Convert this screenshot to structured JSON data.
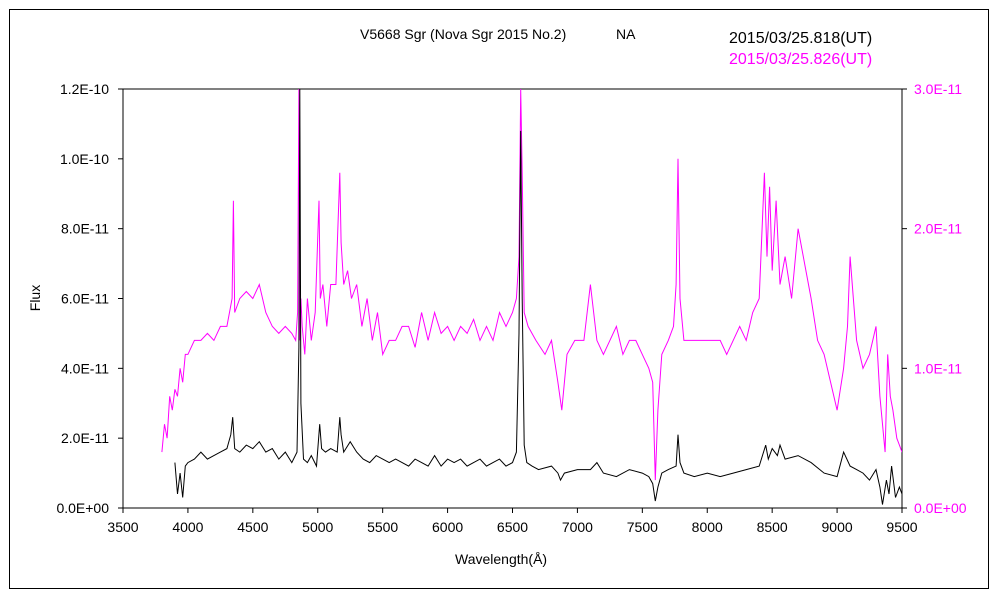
{
  "chart_data": {
    "type": "line",
    "title": "V5668 Sgr (Nova Sgr 2015 No.2)",
    "subtitle": "NA",
    "xlabel": "Wavelength(Å)",
    "ylabel": "Flux",
    "xlim": [
      3500,
      9500
    ],
    "ylim_left": [
      0,
      1.2e-10
    ],
    "ylim_right": [
      0,
      3e-11
    ],
    "grid": false,
    "legend_position": "top-right",
    "x_ticks": [
      "3500",
      "4000",
      "4500",
      "5000",
      "5500",
      "6000",
      "6500",
      "7000",
      "7500",
      "8000",
      "8500",
      "9000",
      "9500"
    ],
    "y_left_ticks": [
      "0.0E+00",
      "2.0E-11",
      "4.0E-11",
      "6.0E-11",
      "8.0E-11",
      "1.0E-10",
      "1.2E-10"
    ],
    "y_right_ticks": [
      "0.0E+00",
      "1.0E-11",
      "2.0E-11",
      "3.0E-11"
    ],
    "series": [
      {
        "name": "2015/03/25.818(UT)",
        "axis": "left",
        "color": "#000000",
        "x": [
          3900,
          3920,
          3940,
          3960,
          3980,
          4000,
          4050,
          4100,
          4150,
          4200,
          4250,
          4300,
          4330,
          4345,
          4360,
          4400,
          4450,
          4500,
          4550,
          4600,
          4650,
          4700,
          4750,
          4800,
          4840,
          4855,
          4862,
          4870,
          4890,
          4920,
          4950,
          4990,
          5015,
          5030,
          5060,
          5100,
          5150,
          5170,
          5180,
          5200,
          5250,
          5300,
          5350,
          5400,
          5450,
          5500,
          5550,
          5600,
          5650,
          5700,
          5750,
          5800,
          5850,
          5900,
          5950,
          6000,
          6050,
          6100,
          6150,
          6200,
          6250,
          6300,
          6350,
          6400,
          6450,
          6500,
          6530,
          6550,
          6563,
          6575,
          6590,
          6610,
          6650,
          6700,
          6800,
          6850,
          6870,
          6900,
          7000,
          7100,
          7150,
          7200,
          7300,
          7400,
          7500,
          7550,
          7580,
          7600,
          7620,
          7650,
          7700,
          7760,
          7775,
          7790,
          7820,
          7900,
          8000,
          8100,
          8200,
          8300,
          8400,
          8450,
          8470,
          8500,
          8540,
          8560,
          8600,
          8700,
          8800,
          8900,
          9000,
          9050,
          9100,
          9150,
          9200,
          9250,
          9300,
          9330,
          9350,
          9380,
          9400,
          9420,
          9450,
          9480,
          9500
        ],
        "y": [
          1.3e-11,
          4e-12,
          1e-11,
          3e-12,
          1.2e-11,
          1.3e-11,
          1.4e-11,
          1.6e-11,
          1.4e-11,
          1.5e-11,
          1.6e-11,
          1.7e-11,
          2.1e-11,
          2.6e-11,
          1.7e-11,
          1.6e-11,
          1.8e-11,
          1.7e-11,
          1.9e-11,
          1.6e-11,
          1.7e-11,
          1.4e-11,
          1.6e-11,
          1.3e-11,
          1.6e-11,
          4.6e-11,
          1.2e-10,
          3e-11,
          1.4e-11,
          1.3e-11,
          1.5e-11,
          1.2e-11,
          2.4e-11,
          1.7e-11,
          1.6e-11,
          1.7e-11,
          1.6e-11,
          2.6e-11,
          2.1e-11,
          1.6e-11,
          1.9e-11,
          1.6e-11,
          1.4e-11,
          1.3e-11,
          1.5e-11,
          1.4e-11,
          1.3e-11,
          1.4e-11,
          1.3e-11,
          1.2e-11,
          1.4e-11,
          1.3e-11,
          1.2e-11,
          1.5e-11,
          1.2e-11,
          1.4e-11,
          1.3e-11,
          1.4e-11,
          1.2e-11,
          1.3e-11,
          1.4e-11,
          1.2e-11,
          1.3e-11,
          1.4e-11,
          1.2e-11,
          1.3e-11,
          1.6e-11,
          5e-11,
          1.08e-10,
          6e-11,
          1.8e-11,
          1.3e-11,
          1.2e-11,
          1.1e-11,
          1.2e-11,
          1e-11,
          8e-12,
          1e-11,
          1.1e-11,
          1.1e-11,
          1.3e-11,
          1e-11,
          9e-12,
          1.1e-11,
          1e-11,
          9e-12,
          7e-12,
          2e-12,
          6e-12,
          1e-11,
          1.1e-11,
          1.2e-11,
          2.1e-11,
          1.3e-11,
          1e-11,
          9e-12,
          1e-11,
          9e-12,
          1e-11,
          1.1e-11,
          1.2e-11,
          1.8e-11,
          1.4e-11,
          1.7e-11,
          1.5e-11,
          1.8e-11,
          1.4e-11,
          1.5e-11,
          1.3e-11,
          1e-11,
          9e-12,
          1.6e-11,
          1.2e-11,
          1.1e-11,
          1e-11,
          8e-12,
          1.1e-11,
          6e-12,
          1e-12,
          8e-12,
          4e-12,
          1.2e-11,
          3e-12,
          6e-12,
          4e-12
        ]
      },
      {
        "name": "2015/03/25.826(UT)",
        "axis": "right",
        "color": "#ff00ff",
        "x": [
          3800,
          3820,
          3840,
          3860,
          3880,
          3900,
          3920,
          3940,
          3960,
          3980,
          4000,
          4050,
          4100,
          4150,
          4200,
          4250,
          4300,
          4340,
          4350,
          4360,
          4400,
          4450,
          4500,
          4550,
          4600,
          4650,
          4700,
          4750,
          4800,
          4830,
          4845,
          4855,
          4862,
          4870,
          4880,
          4900,
          4920,
          4950,
          4980,
          5010,
          5020,
          5040,
          5070,
          5100,
          5140,
          5170,
          5180,
          5200,
          5230,
          5260,
          5300,
          5340,
          5380,
          5420,
          5460,
          5500,
          5550,
          5600,
          5650,
          5700,
          5750,
          5800,
          5850,
          5900,
          5950,
          6000,
          6050,
          6100,
          6150,
          6200,
          6250,
          6300,
          6350,
          6400,
          6450,
          6500,
          6530,
          6550,
          6563,
          6575,
          6590,
          6620,
          6680,
          6750,
          6800,
          6850,
          6880,
          6920,
          6980,
          7050,
          7100,
          7150,
          7200,
          7250,
          7300,
          7350,
          7400,
          7450,
          7500,
          7550,
          7580,
          7600,
          7620,
          7650,
          7700,
          7740,
          7760,
          7775,
          7790,
          7820,
          7900,
          8000,
          8100,
          8150,
          8200,
          8250,
          8300,
          8350,
          8400,
          8440,
          8460,
          8480,
          8500,
          8530,
          8560,
          8600,
          8650,
          8700,
          8720,
          8760,
          8800,
          8850,
          8900,
          8950,
          9000,
          9050,
          9080,
          9100,
          9150,
          9200,
          9250,
          9300,
          9330,
          9350,
          9370,
          9390,
          9410,
          9430,
          9460,
          9480,
          9500
        ],
        "y": [
          4e-12,
          6e-12,
          5e-12,
          8e-12,
          7e-12,
          8.5e-12,
          8e-12,
          1e-11,
          9e-12,
          1.1e-11,
          1.1e-11,
          1.2e-11,
          1.2e-11,
          1.25e-11,
          1.2e-11,
          1.3e-11,
          1.3e-11,
          1.5e-11,
          2.2e-11,
          1.4e-11,
          1.5e-11,
          1.55e-11,
          1.5e-11,
          1.6e-11,
          1.4e-11,
          1.3e-11,
          1.25e-11,
          1.3e-11,
          1.25e-11,
          1.2e-11,
          1.4e-11,
          3e-11,
          1.2e-11,
          1.5e-11,
          1.3e-11,
          1.1e-11,
          1.5e-11,
          1.2e-11,
          1.4e-11,
          2.2e-11,
          1.5e-11,
          1.6e-11,
          1.3e-11,
          1.6e-11,
          1.6e-11,
          2.4e-11,
          1.9e-11,
          1.6e-11,
          1.7e-11,
          1.5e-11,
          1.6e-11,
          1.3e-11,
          1.5e-11,
          1.2e-11,
          1.4e-11,
          1.1e-11,
          1.2e-11,
          1.2e-11,
          1.3e-11,
          1.3e-11,
          1.15e-11,
          1.4e-11,
          1.2e-11,
          1.4e-11,
          1.25e-11,
          1.3e-11,
          1.2e-11,
          1.3e-11,
          1.25e-11,
          1.35e-11,
          1.2e-11,
          1.3e-11,
          1.2e-11,
          1.4e-11,
          1.3e-11,
          1.4e-11,
          1.5e-11,
          1.8e-11,
          3e-11,
          2.4e-11,
          1.4e-11,
          1.3e-11,
          1.2e-11,
          1.1e-11,
          1.2e-11,
          9e-12,
          7e-12,
          1.1e-11,
          1.2e-11,
          1.2e-11,
          1.6e-11,
          1.2e-11,
          1.1e-11,
          1.2e-11,
          1.3e-11,
          1.1e-11,
          1.2e-11,
          1.2e-11,
          1.1e-11,
          1e-11,
          9e-12,
          2e-12,
          7e-12,
          1.1e-11,
          1.2e-11,
          1.3e-11,
          1.6e-11,
          2.5e-11,
          1.5e-11,
          1.2e-11,
          1.2e-11,
          1.2e-11,
          1.2e-11,
          1.1e-11,
          1.2e-11,
          1.3e-11,
          1.2e-11,
          1.4e-11,
          1.5e-11,
          2.4e-11,
          1.8e-11,
          2.3e-11,
          1.7e-11,
          2.2e-11,
          1.6e-11,
          1.8e-11,
          1.5e-11,
          2e-11,
          1.9e-11,
          1.7e-11,
          1.5e-11,
          1.2e-11,
          1.1e-11,
          9e-12,
          7e-12,
          1e-11,
          1.3e-11,
          1.8e-11,
          1.2e-11,
          1e-11,
          1.1e-11,
          1.3e-11,
          8e-12,
          6e-12,
          4e-12,
          1.1e-11,
          8e-12,
          7e-12,
          5e-12,
          4.5e-12,
          4e-12
        ]
      }
    ]
  }
}
